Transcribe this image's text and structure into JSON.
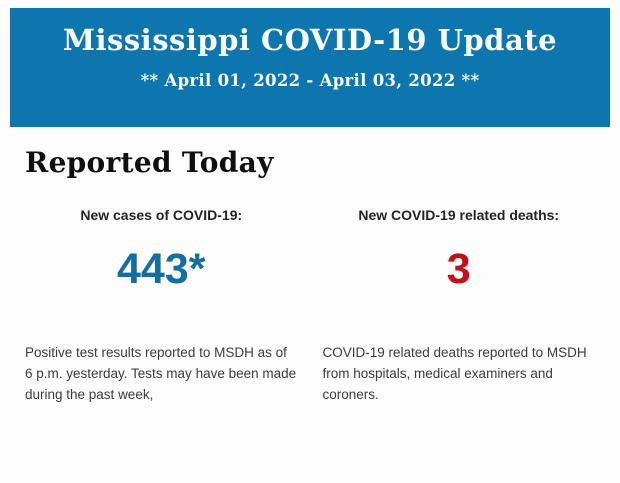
{
  "banner": {
    "title": "Mississippi COVID-19 Update",
    "subtitle": "** April 01, 2022 - April 03, 2022 **"
  },
  "main": {
    "heading": "Reported Today",
    "stats": [
      {
        "label": "New cases of COVID-19:",
        "value": "443*",
        "description": "Positive test results reported to MSDH as of 6 p.m. yesterday. Tests may have been made during the past week,"
      },
      {
        "label": "New COVID-19 related deaths:",
        "value": "3",
        "description": "COVID-19 related deaths reported to MSDH from hospitals, medical examiners and coroners."
      }
    ]
  },
  "colors": {
    "banner_background": "#0d76ae",
    "banner_text": "#fafdfe",
    "cases_value": "#146fa0",
    "deaths_value": "#c41019",
    "body_text": "#3c3c3c"
  }
}
